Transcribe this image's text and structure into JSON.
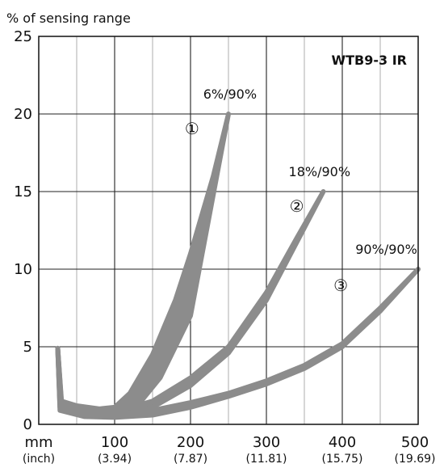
{
  "chart_data": {
    "type": "line",
    "ylabel": "% of sensing range",
    "model": "WTB9-3 IR",
    "x_unit": "mm",
    "x_unit_alt": "(inch)",
    "xlim": [
      0,
      500
    ],
    "ylim": [
      0,
      25
    ],
    "grid": true,
    "x_ticks": [
      {
        "value": 100,
        "label": "100",
        "sub": "(3.94)"
      },
      {
        "value": 200,
        "label": "200",
        "sub": "(7.87)"
      },
      {
        "value": 300,
        "label": "300",
        "sub": "(11.81)"
      },
      {
        "value": 400,
        "label": "400",
        "sub": "(15.75)"
      },
      {
        "value": 500,
        "label": "500",
        "sub": "(19.69)"
      }
    ],
    "y_ticks": [
      {
        "value": 0,
        "label": "0"
      },
      {
        "value": 5,
        "label": "5"
      },
      {
        "value": 10,
        "label": "10"
      },
      {
        "value": 15,
        "label": "15"
      },
      {
        "value": 20,
        "label": "20"
      },
      {
        "value": 25,
        "label": "25"
      }
    ],
    "series": [
      {
        "name": "6%/90%",
        "marker": "①",
        "color": "#8c8c8c",
        "upper": [
          [
            25,
            4.9
          ],
          [
            30,
            1.5
          ],
          [
            50,
            1.2
          ],
          [
            80,
            1.0
          ],
          [
            100,
            1.1
          ],
          [
            120,
            2.0
          ],
          [
            150,
            4.5
          ],
          [
            180,
            8.0
          ],
          [
            200,
            11.0
          ],
          [
            230,
            16.0
          ],
          [
            250,
            20.0
          ]
        ],
        "lower": [
          [
            25,
            4.9
          ],
          [
            28,
            1.3
          ],
          [
            60,
            0.6
          ],
          [
            100,
            0.6
          ],
          [
            130,
            1.2
          ],
          [
            160,
            3.0
          ],
          [
            200,
            7.0
          ],
          [
            250,
            20.0
          ]
        ]
      },
      {
        "name": "18%/90%",
        "marker": "②",
        "color": "#8c8c8c",
        "upper": [
          [
            25,
            4.9
          ],
          [
            30,
            1.3
          ],
          [
            60,
            0.9
          ],
          [
            100,
            0.8
          ],
          [
            150,
            1.5
          ],
          [
            200,
            3.0
          ],
          [
            250,
            5.0
          ],
          [
            300,
            8.5
          ],
          [
            340,
            12.0
          ],
          [
            375,
            15.0
          ]
        ],
        "lower": [
          [
            25,
            4.9
          ],
          [
            28,
            1.1
          ],
          [
            60,
            0.55
          ],
          [
            100,
            0.5
          ],
          [
            150,
            1.1
          ],
          [
            200,
            2.5
          ],
          [
            250,
            4.6
          ],
          [
            300,
            8.0
          ],
          [
            375,
            15.0
          ]
        ]
      },
      {
        "name": "90%/90%",
        "marker": "③",
        "color": "#8c8c8c",
        "upper": [
          [
            25,
            4.9
          ],
          [
            30,
            1.1
          ],
          [
            60,
            0.6
          ],
          [
            100,
            0.6
          ],
          [
            150,
            0.9
          ],
          [
            200,
            1.4
          ],
          [
            250,
            2.0
          ],
          [
            300,
            2.8
          ],
          [
            350,
            3.8
          ],
          [
            400,
            5.2
          ],
          [
            450,
            7.5
          ],
          [
            500,
            10.0
          ]
        ],
        "lower": [
          [
            25,
            4.9
          ],
          [
            28,
            0.9
          ],
          [
            60,
            0.5
          ],
          [
            100,
            0.45
          ],
          [
            150,
            0.6
          ],
          [
            200,
            1.1
          ],
          [
            250,
            1.8
          ],
          [
            300,
            2.6
          ],
          [
            350,
            3.6
          ],
          [
            400,
            5.0
          ],
          [
            450,
            7.3
          ],
          [
            500,
            10.0
          ]
        ]
      }
    ]
  }
}
